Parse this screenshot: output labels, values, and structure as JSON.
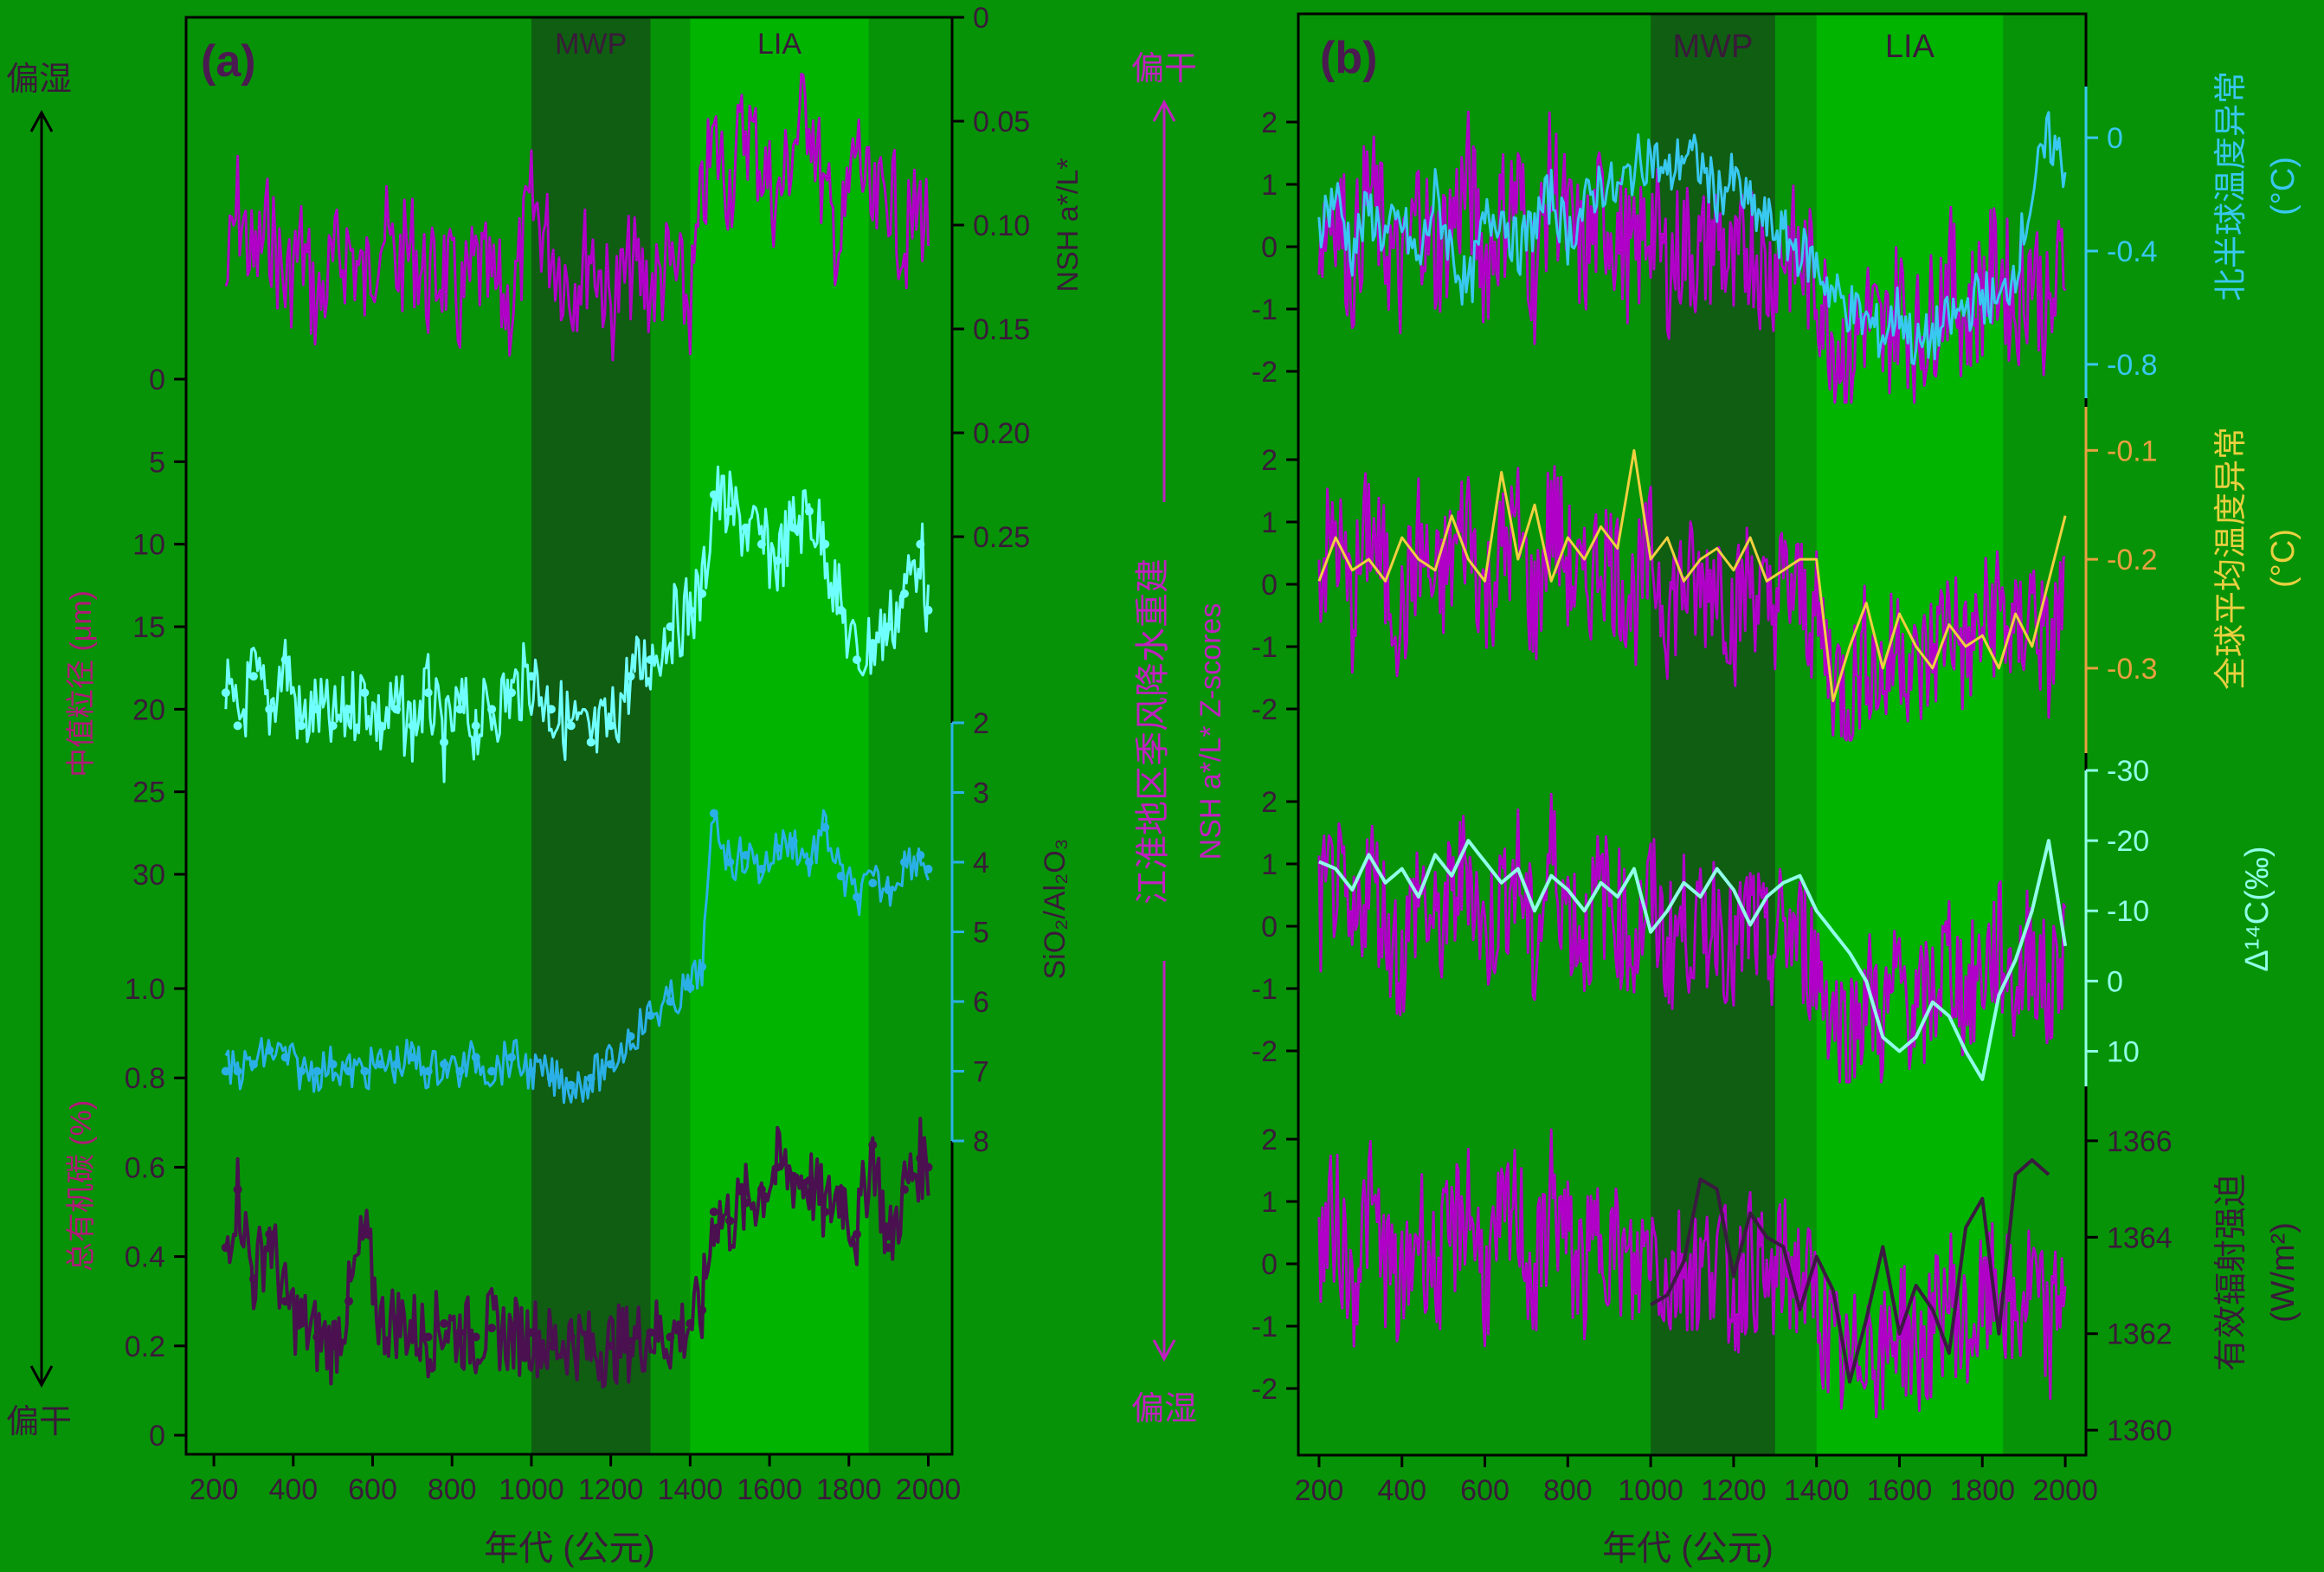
{
  "colors": {
    "background": "#079307",
    "lia_band": "#00b400",
    "mwp_band": "#0f5e12",
    "nsh": "#b000c8",
    "grain": "#70ffff",
    "sio2": "#2ab0e6",
    "toc": "#4a1050",
    "nh_temp": "#38c8f0",
    "global_temp": "#f0d040",
    "c14": "#90ffe8",
    "solar": "#3a1a40",
    "axis": "#000000"
  },
  "panel_a": {
    "label": "(a)",
    "mwp_label": "MWP",
    "lia_label": "LIA",
    "xlabel": "年代 (公元)",
    "xticks": [
      "200",
      "400",
      "600",
      "800",
      "1000",
      "1200",
      "1400",
      "1600",
      "1800",
      "2000"
    ],
    "arrow_top": "偏湿",
    "arrow_bottom": "偏干",
    "nsh_axis": {
      "label": "NSH a*/L*",
      "ticks": [
        "0",
        "0.05",
        "0.10",
        "0.15",
        "0.20",
        "0.25"
      ]
    },
    "grain_axis": {
      "label": "中值粒径 (μm)",
      "ticks": [
        "0",
        "5",
        "10",
        "15",
        "20",
        "25",
        "30"
      ]
    },
    "sio2_axis": {
      "label": "SiO₂/Al₂O₃",
      "ticks": [
        "2",
        "3",
        "4",
        "5",
        "6",
        "7",
        "8"
      ]
    },
    "toc_axis": {
      "label": "总有机碳 (%)",
      "ticks": [
        "0",
        "0.2",
        "0.4",
        "0.6",
        "0.8",
        "1.0"
      ]
    }
  },
  "panel_b": {
    "label": "(b)",
    "mwp_label": "MWP",
    "lia_label": "LIA",
    "xlabel": "年代 (公元)",
    "xticks": [
      "200",
      "400",
      "600",
      "800",
      "1000",
      "1200",
      "1400",
      "1600",
      "1800",
      "2000"
    ],
    "arrow_top": "偏干",
    "arrow_bottom": "偏湿",
    "left_label_1": "江淮地区季风降水重建",
    "left_label_2": "NSH a*/L* Z-scores",
    "zticks": [
      "2",
      "1",
      "0",
      "-1",
      "-2"
    ],
    "nh_axis": {
      "label": "北半球温度异常",
      "unit": "(°C)",
      "ticks": [
        "0",
        "-0.4",
        "-0.8"
      ]
    },
    "global_axis": {
      "label": "全球平均温度异常",
      "unit": "(°C)",
      "ticks": [
        "-0.1",
        "-0.2",
        "-0.3"
      ]
    },
    "c14_axis": {
      "label": "Δ¹⁴C(‰)",
      "ticks": [
        "-30",
        "-20",
        "-10",
        "0",
        "10"
      ]
    },
    "tsi_axis": {
      "label": "有效辐射强迫",
      "unit": "(W/m²)",
      "ticks": [
        "1366",
        "1364",
        "1362",
        "1360"
      ]
    }
  },
  "chart_data": [
    {
      "type": "line",
      "panel": "a",
      "x_range": [
        130,
        2060
      ],
      "periods": {
        "MWP": [
          1000,
          1300
        ],
        "LIA": [
          1400,
          1850
        ]
      },
      "series": [
        {
          "name": "NSH a*/L*",
          "ylim": [
            0,
            0.25
          ],
          "inverted": true,
          "x": [
            230,
            260,
            300,
            340,
            380,
            420,
            460,
            500,
            540,
            580,
            620,
            660,
            700,
            740,
            780,
            820,
            860,
            900,
            950,
            1000,
            1050,
            1100,
            1150,
            1200,
            1250,
            1300,
            1350,
            1400,
            1430,
            1460,
            1500,
            1540,
            1580,
            1620,
            1660,
            1700,
            1740,
            1780,
            1820,
            1860,
            1900,
            1940,
            1980,
            2000
          ],
          "y": [
            0.13,
            0.09,
            0.12,
            0.1,
            0.13,
            0.11,
            0.14,
            0.12,
            0.11,
            0.13,
            0.1,
            0.12,
            0.11,
            0.13,
            0.12,
            0.14,
            0.12,
            0.13,
            0.14,
            0.09,
            0.11,
            0.13,
            0.11,
            0.14,
            0.12,
            0.13,
            0.12,
            0.14,
            0.09,
            0.06,
            0.08,
            0.05,
            0.07,
            0.09,
            0.06,
            0.04,
            0.09,
            0.11,
            0.06,
            0.1,
            0.08,
            0.11,
            0.09,
            0.1
          ]
        },
        {
          "name": "中值粒径",
          "ylim": [
            0,
            30
          ],
          "inverted": true,
          "x": [
            230,
            260,
            300,
            340,
            380,
            420,
            460,
            500,
            540,
            580,
            620,
            660,
            700,
            740,
            780,
            820,
            860,
            900,
            950,
            1000,
            1050,
            1100,
            1150,
            1200,
            1250,
            1300,
            1350,
            1400,
            1430,
            1460,
            1500,
            1540,
            1580,
            1620,
            1660,
            1700,
            1740,
            1780,
            1820,
            1860,
            1900,
            1940,
            1980,
            2000
          ],
          "y": [
            19,
            21,
            18,
            20,
            17,
            21,
            20,
            21,
            20,
            19,
            21,
            20,
            21,
            19,
            22,
            20,
            21,
            20,
            19,
            18,
            20,
            21,
            22,
            21,
            18,
            17,
            15,
            14,
            13,
            7,
            8,
            9,
            10,
            11,
            9,
            8,
            10,
            14,
            17,
            16,
            15,
            13,
            10,
            14
          ]
        },
        {
          "name": "SiO₂/Al₂O₃",
          "ylim": [
            2,
            8
          ],
          "inverted": true,
          "x": [
            230,
            260,
            300,
            340,
            380,
            420,
            460,
            500,
            540,
            580,
            620,
            660,
            700,
            740,
            780,
            820,
            860,
            900,
            950,
            1000,
            1050,
            1100,
            1150,
            1200,
            1250,
            1300,
            1350,
            1400,
            1430,
            1460,
            1500,
            1540,
            1580,
            1620,
            1660,
            1700,
            1740,
            1780,
            1820,
            1860,
            1900,
            1940,
            1980,
            2000
          ],
          "y": [
            7.0,
            7.0,
            6.9,
            6.7,
            6.8,
            7.0,
            7.0,
            6.9,
            7.0,
            7.0,
            6.9,
            6.9,
            6.8,
            7.0,
            6.9,
            7.0,
            6.8,
            7.0,
            6.8,
            7.0,
            7.1,
            7.2,
            7.1,
            6.9,
            6.5,
            6.2,
            6.0,
            5.8,
            5.5,
            3.3,
            4.0,
            3.9,
            4.1,
            3.8,
            3.7,
            4.0,
            3.5,
            4.2,
            4.5,
            4.3,
            4.4,
            4.0,
            3.9,
            4.1
          ]
        },
        {
          "name": "总有机碳",
          "ylim": [
            0,
            1.0
          ],
          "inverted": false,
          "x": [
            230,
            260,
            300,
            340,
            380,
            420,
            460,
            500,
            540,
            580,
            620,
            660,
            700,
            740,
            780,
            820,
            860,
            900,
            950,
            1000,
            1050,
            1100,
            1150,
            1200,
            1250,
            1300,
            1350,
            1400,
            1430,
            1460,
            1500,
            1540,
            1580,
            1620,
            1660,
            1700,
            1740,
            1780,
            1820,
            1860,
            1900,
            1940,
            1980,
            2000
          ],
          "y": [
            0.42,
            0.55,
            0.35,
            0.45,
            0.3,
            0.25,
            0.22,
            0.2,
            0.3,
            0.45,
            0.25,
            0.26,
            0.24,
            0.22,
            0.25,
            0.23,
            0.22,
            0.24,
            0.22,
            0.23,
            0.2,
            0.22,
            0.19,
            0.2,
            0.21,
            0.23,
            0.22,
            0.25,
            0.28,
            0.5,
            0.48,
            0.52,
            0.55,
            0.6,
            0.58,
            0.57,
            0.5,
            0.55,
            0.45,
            0.65,
            0.42,
            0.55,
            0.62,
            0.6
          ]
        }
      ]
    },
    {
      "type": "line",
      "panel": "b",
      "x_range": [
        150,
        2050
      ],
      "periods": {
        "MWP": [
          1000,
          1300
        ],
        "LIA": [
          1400,
          1850
        ]
      },
      "series": [
        {
          "name": "NSH a*/L* Z-scores",
          "ylim": [
            -2.5,
            2.5
          ],
          "x": [
            200,
            240,
            280,
            320,
            360,
            400,
            440,
            480,
            520,
            560,
            600,
            640,
            680,
            720,
            760,
            800,
            840,
            880,
            920,
            960,
            1000,
            1040,
            1080,
            1120,
            1160,
            1200,
            1240,
            1280,
            1320,
            1360,
            1400,
            1440,
            1480,
            1520,
            1560,
            1600,
            1640,
            1680,
            1720,
            1760,
            1800,
            1840,
            1880,
            1920,
            1960,
            2000
          ],
          "y": [
            0.2,
            0.8,
            -0.4,
            1.0,
            0.1,
            -0.6,
            0.7,
            -0.2,
            0.4,
            1.1,
            -0.3,
            0.5,
            0.9,
            -0.5,
            1.2,
            0.3,
            -0.2,
            0.6,
            0.2,
            -0.3,
            0.5,
            -0.4,
            0.1,
            -0.2,
            0.3,
            -0.6,
            0.2,
            -0.5,
            0.0,
            -0.2,
            -0.6,
            -1.4,
            -1.8,
            -1.0,
            -1.6,
            -0.8,
            -1.5,
            -1.1,
            -0.4,
            -1.2,
            -0.7,
            -0.3,
            -1.0,
            -0.2,
            -1.3,
            0.0
          ]
        },
        {
          "name": "北半球温度异常",
          "ylim": [
            -0.95,
            0.15
          ],
          "x": [
            200,
            240,
            280,
            320,
            360,
            400,
            440,
            480,
            520,
            560,
            600,
            640,
            680,
            720,
            760,
            800,
            840,
            880,
            920,
            960,
            1000,
            1040,
            1080,
            1120,
            1160,
            1200,
            1240,
            1280,
            1320,
            1360,
            1400,
            1440,
            1480,
            1520,
            1560,
            1600,
            1640,
            1680,
            1720,
            1760,
            1800,
            1840,
            1880,
            1920,
            1960,
            2000
          ],
          "y": [
            -0.3,
            -0.2,
            -0.4,
            -0.25,
            -0.35,
            -0.3,
            -0.45,
            -0.2,
            -0.4,
            -0.55,
            -0.3,
            -0.25,
            -0.4,
            -0.3,
            -0.2,
            -0.35,
            -0.25,
            -0.15,
            -0.2,
            -0.1,
            -0.05,
            -0.15,
            -0.05,
            -0.1,
            -0.2,
            -0.15,
            -0.25,
            -0.3,
            -0.35,
            -0.4,
            -0.45,
            -0.55,
            -0.6,
            -0.65,
            -0.7,
            -0.6,
            -0.75,
            -0.7,
            -0.65,
            -0.6,
            -0.55,
            -0.6,
            -0.45,
            -0.2,
            0.0,
            -0.1
          ]
        },
        {
          "name": "全球平均温度异常",
          "ylim": [
            -0.37,
            -0.06
          ],
          "x": [
            200,
            240,
            280,
            320,
            360,
            400,
            440,
            480,
            520,
            560,
            600,
            640,
            680,
            720,
            760,
            800,
            840,
            880,
            920,
            960,
            1000,
            1040,
            1080,
            1120,
            1160,
            1200,
            1240,
            1280,
            1320,
            1360,
            1400,
            1440,
            1480,
            1520,
            1560,
            1600,
            1640,
            1680,
            1720,
            1760,
            1800,
            1840,
            1880,
            1920,
            1960,
            2000
          ],
          "y": [
            -0.22,
            -0.18,
            -0.21,
            -0.2,
            -0.22,
            -0.18,
            -0.2,
            -0.21,
            -0.16,
            -0.2,
            -0.22,
            -0.12,
            -0.2,
            -0.15,
            -0.22,
            -0.18,
            -0.2,
            -0.17,
            -0.19,
            -0.1,
            -0.2,
            -0.18,
            -0.22,
            -0.2,
            -0.19,
            -0.21,
            -0.18,
            -0.22,
            -0.21,
            -0.2,
            -0.2,
            -0.33,
            -0.28,
            -0.24,
            -0.3,
            -0.25,
            -0.28,
            -0.3,
            -0.26,
            -0.28,
            -0.27,
            -0.3,
            -0.25,
            -0.28,
            -0.22,
            -0.16
          ]
        },
        {
          "name": "Δ¹⁴C(‰)",
          "ylim": [
            -30,
            15
          ],
          "inverted": true,
          "x": [
            200,
            240,
            280,
            320,
            360,
            400,
            440,
            480,
            520,
            560,
            600,
            640,
            680,
            720,
            760,
            800,
            840,
            880,
            920,
            960,
            1000,
            1040,
            1080,
            1120,
            1160,
            1200,
            1240,
            1280,
            1320,
            1360,
            1400,
            1440,
            1480,
            1520,
            1560,
            1600,
            1640,
            1680,
            1720,
            1760,
            1800,
            1840,
            1880,
            1920,
            1960,
            2000
          ],
          "y": [
            -17,
            -16,
            -13,
            -18,
            -14,
            -16,
            -12,
            -18,
            -15,
            -20,
            -17,
            -14,
            -16,
            -10,
            -15,
            -13,
            -10,
            -14,
            -12,
            -16,
            -7,
            -10,
            -14,
            -12,
            -16,
            -13,
            -8,
            -12,
            -14,
            -15,
            -10,
            -7,
            -4,
            0,
            8,
            10,
            8,
            3,
            5,
            10,
            14,
            2,
            -3,
            -10,
            -20,
            -5
          ]
        },
        {
          "name": "有效辐射强迫",
          "ylim": [
            1359.5,
            1366.5
          ],
          "x": [
            1000,
            1040,
            1080,
            1120,
            1160,
            1200,
            1240,
            1280,
            1320,
            1360,
            1400,
            1440,
            1480,
            1520,
            1560,
            1600,
            1640,
            1680,
            1720,
            1760,
            1800,
            1840,
            1880,
            1920,
            1960
          ],
          "y": [
            1362.6,
            1362.8,
            1363.5,
            1365.2,
            1365.0,
            1363.2,
            1364.5,
            1364.0,
            1363.8,
            1362.5,
            1363.6,
            1362.9,
            1361.0,
            1362.3,
            1363.8,
            1362.0,
            1363.0,
            1362.5,
            1361.6,
            1364.2,
            1364.8,
            1362.0,
            1365.3,
            1365.6,
            1365.3
          ]
        }
      ]
    }
  ]
}
